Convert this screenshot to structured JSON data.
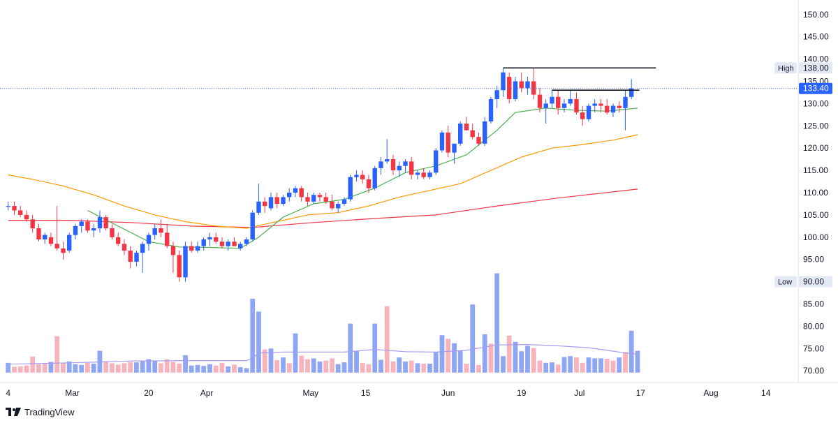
{
  "brand": "TradingView",
  "chart_data": {
    "type": "candlestick",
    "y_axis": {
      "range": [
        68,
        152
      ],
      "ticks": [
        "70.00",
        "75.00",
        "80.00",
        "85.00",
        "90.00",
        "95.00",
        "100.00",
        "105.00",
        "110.00",
        "115.00",
        "120.00",
        "125.00",
        "130.00",
        "135.00",
        "140.00",
        "145.00",
        "150.00"
      ]
    },
    "x_axis": {
      "ticks": [
        {
          "label": "4",
          "bar": 0
        },
        {
          "label": "Mar",
          "bar": 10.5
        },
        {
          "label": "20",
          "bar": 23
        },
        {
          "label": "Apr",
          "bar": 32.5
        },
        {
          "label": "May",
          "bar": 49.5
        },
        {
          "label": "15",
          "bar": 58.5
        },
        {
          "label": "Jun",
          "bar": 72
        },
        {
          "label": "19",
          "bar": 84
        },
        {
          "label": "Jul",
          "bar": 93.5
        },
        {
          "label": "17",
          "bar": 103.5
        },
        {
          "label": "Aug",
          "bar": 115
        },
        {
          "label": "14",
          "bar": 124
        }
      ]
    },
    "markers": {
      "high": {
        "label": "High",
        "value": "138.00",
        "price": 138
      },
      "last": {
        "value": "133.40",
        "price": 133.4
      },
      "low": {
        "label": "Low",
        "value": "90.00",
        "price": 90
      }
    },
    "colors": {
      "up": "#2962ff",
      "down": "#f23645",
      "ma_fast": "#4caf50",
      "ma_mid": "#ff9800",
      "ma_slow": "#f23645",
      "vol_up": "#8fa6f5",
      "vol_down": "#f8b4bd",
      "vol_ma": "#a99bf0",
      "price_line": "#2962ff"
    },
    "candles": [
      [
        107,
        108,
        106,
        107
      ],
      [
        107,
        108,
        105,
        106
      ],
      [
        106,
        107,
        104.5,
        105
      ],
      [
        105,
        106,
        103.5,
        104
      ],
      [
        104,
        105,
        101,
        102
      ],
      [
        102,
        103,
        99,
        99.5
      ],
      [
        99.5,
        101,
        98.5,
        100.5
      ],
      [
        100,
        101,
        98,
        98.5
      ],
      [
        98.5,
        107,
        97,
        97.5
      ],
      [
        97.5,
        99,
        95,
        96.5
      ],
      [
        97,
        101,
        96.5,
        100.5
      ],
      [
        100.5,
        103,
        99.5,
        102.5
      ],
      [
        102.5,
        104,
        101,
        103.5
      ],
      [
        103.5,
        104,
        101,
        101.5
      ],
      [
        101.5,
        103,
        100,
        102
      ],
      [
        102,
        106,
        101,
        104.5
      ],
      [
        104.5,
        105,
        101.5,
        102
      ],
      [
        102,
        103,
        99.5,
        100
      ],
      [
        100,
        101,
        98,
        98.5
      ],
      [
        98.5,
        99.5,
        96,
        97
      ],
      [
        97,
        98,
        93,
        94.5
      ],
      [
        94.5,
        97,
        93.5,
        96.5
      ],
      [
        96.5,
        99,
        92,
        98.5
      ],
      [
        98.5,
        101,
        97,
        100.5
      ],
      [
        100.5,
        103,
        99.5,
        102
      ],
      [
        102,
        104,
        100,
        101
      ],
      [
        101,
        103,
        97.5,
        98
      ],
      [
        98,
        99,
        92,
        96
      ],
      [
        96,
        97,
        90,
        91
      ],
      [
        91,
        99,
        90,
        98
      ],
      [
        98,
        99,
        96.5,
        97
      ],
      [
        97,
        99,
        96.5,
        98
      ],
      [
        98,
        100,
        97,
        99.5
      ],
      [
        99.5,
        101,
        98,
        100
      ],
      [
        100,
        101,
        98.5,
        99
      ],
      [
        99,
        100,
        97.5,
        98
      ],
      [
        98,
        99.5,
        97,
        99
      ],
      [
        99,
        100,
        98,
        98
      ],
      [
        97.5,
        99,
        97,
        98.5
      ],
      [
        98.5,
        100,
        98,
        99.5
      ],
      [
        99.5,
        106,
        99,
        105.5
      ],
      [
        105.5,
        112,
        105,
        108
      ],
      [
        108,
        109,
        105.5,
        107
      ],
      [
        106.5,
        110,
        106,
        109
      ],
      [
        109,
        110,
        106.5,
        107.5
      ],
      [
        107.5,
        109.5,
        107,
        109
      ],
      [
        109,
        111,
        108,
        110
      ],
      [
        110,
        111.5,
        109,
        111
      ],
      [
        111,
        111.5,
        108,
        109
      ],
      [
        109,
        110,
        107,
        108
      ],
      [
        108,
        110,
        107.5,
        109.5
      ],
      [
        109.5,
        110,
        108,
        109
      ],
      [
        109,
        110,
        107.5,
        108
      ],
      [
        108,
        109.5,
        106,
        106.5
      ],
      [
        106.5,
        108,
        105.5,
        107.5
      ],
      [
        107.5,
        109,
        107,
        108.5
      ],
      [
        108.5,
        114,
        108,
        113.5
      ],
      [
        113.5,
        115,
        112.5,
        114
      ],
      [
        114,
        115,
        112,
        113
      ],
      [
        113,
        114,
        110,
        111
      ],
      [
        111,
        116,
        110.5,
        115.5
      ],
      [
        115.5,
        118,
        114,
        117
      ],
      [
        117,
        122,
        116.5,
        117.5
      ],
      [
        117.5,
        118.5,
        114,
        115
      ],
      [
        115,
        117,
        113.5,
        116
      ],
      [
        116,
        117.5,
        114.5,
        117
      ],
      [
        117,
        118,
        113,
        114
      ],
      [
        114,
        115,
        113,
        114.5
      ],
      [
        114.5,
        115.5,
        113,
        113.5
      ],
      [
        113.5,
        115,
        113,
        114.5
      ],
      [
        114.5,
        120,
        114,
        119.5
      ],
      [
        119.5,
        124,
        119,
        123.5
      ],
      [
        123.5,
        125,
        118,
        119
      ],
      [
        119,
        121,
        116.5,
        121
      ],
      [
        121,
        126,
        120.5,
        125.5
      ],
      [
        125.5,
        127,
        124,
        124
      ],
      [
        124,
        125.5,
        122,
        122.5
      ],
      [
        122.5,
        123.5,
        120.5,
        121
      ],
      [
        121,
        127,
        120.5,
        126
      ],
      [
        126,
        131.5,
        125.5,
        131
      ],
      [
        131,
        134,
        129,
        133
      ],
      [
        133,
        138,
        131.5,
        137
      ],
      [
        136,
        137,
        130,
        131
      ],
      [
        131,
        136,
        130.5,
        135
      ],
      [
        135,
        137,
        132.5,
        133.5
      ],
      [
        133.5,
        136,
        132,
        135
      ],
      [
        135,
        138,
        131,
        132
      ],
      [
        132,
        133.5,
        128,
        129
      ],
      [
        129,
        131,
        125.5,
        130
      ],
      [
        130,
        133,
        129,
        131.5
      ],
      [
        131.5,
        133,
        127.5,
        129
      ],
      [
        129,
        131,
        128,
        130
      ],
      [
        130,
        133,
        129.5,
        131
      ],
      [
        131,
        132.5,
        127.5,
        128
      ],
      [
        128,
        129.5,
        125,
        126.5
      ],
      [
        126.5,
        130,
        126,
        129.5
      ],
      [
        129.5,
        131,
        128,
        130
      ],
      [
        130,
        131,
        128,
        129.5
      ],
      [
        129.5,
        131,
        127.5,
        128
      ],
      [
        128,
        130,
        127,
        129.5
      ],
      [
        129.5,
        130.5,
        128,
        129
      ],
      [
        129,
        133,
        124,
        131.5
      ],
      [
        131.5,
        135.5,
        131,
        133.4
      ]
    ],
    "volumes": [
      [
        71.8,
        "u"
      ],
      [
        70.9,
        "d"
      ],
      [
        71,
        "d"
      ],
      [
        71.2,
        "d"
      ],
      [
        73.2,
        "d"
      ],
      [
        71.5,
        "d"
      ],
      [
        71.6,
        "d"
      ],
      [
        72,
        "u"
      ],
      [
        77.8,
        "d"
      ],
      [
        71.7,
        "d"
      ],
      [
        72.1,
        "u"
      ],
      [
        71.5,
        "u"
      ],
      [
        71.3,
        "u"
      ],
      [
        71.8,
        "d"
      ],
      [
        71.6,
        "u"
      ],
      [
        74.5,
        "u"
      ],
      [
        72,
        "d"
      ],
      [
        71.7,
        "d"
      ],
      [
        71.4,
        "d"
      ],
      [
        71.7,
        "d"
      ],
      [
        72,
        "d"
      ],
      [
        71.9,
        "u"
      ],
      [
        72.3,
        "u"
      ],
      [
        72.6,
        "u"
      ],
      [
        72.2,
        "u"
      ],
      [
        71.7,
        "d"
      ],
      [
        72.6,
        "d"
      ],
      [
        72,
        "d"
      ],
      [
        71.6,
        "d"
      ],
      [
        73.5,
        "u"
      ],
      [
        71.2,
        "u"
      ],
      [
        71.3,
        "u"
      ],
      [
        71.1,
        "u"
      ],
      [
        71.5,
        "u"
      ],
      [
        71.2,
        "d"
      ],
      [
        71.8,
        "d"
      ],
      [
        71,
        "u"
      ],
      [
        71.4,
        "d"
      ],
      [
        70.8,
        "u"
      ],
      [
        70.6,
        "u"
      ],
      [
        86.2,
        "u"
      ],
      [
        83.3,
        "u"
      ],
      [
        74.8,
        "d"
      ],
      [
        75,
        "u"
      ],
      [
        72.4,
        "d"
      ],
      [
        73,
        "u"
      ],
      [
        71.7,
        "d"
      ],
      [
        78.4,
        "u"
      ],
      [
        73.4,
        "d"
      ],
      [
        72.6,
        "d"
      ],
      [
        72.8,
        "u"
      ],
      [
        72.1,
        "u"
      ],
      [
        72.3,
        "d"
      ],
      [
        72.8,
        "d"
      ],
      [
        71.5,
        "u"
      ],
      [
        71.9,
        "u"
      ],
      [
        80.6,
        "u"
      ],
      [
        74.5,
        "u"
      ],
      [
        71.8,
        "d"
      ],
      [
        71.5,
        "d"
      ],
      [
        80.6,
        "u"
      ],
      [
        72.5,
        "u"
      ],
      [
        84.5,
        "d"
      ],
      [
        72.1,
        "d"
      ],
      [
        73,
        "u"
      ],
      [
        72.1,
        "u"
      ],
      [
        72.3,
        "d"
      ],
      [
        71.7,
        "u"
      ],
      [
        71.6,
        "d"
      ],
      [
        71.6,
        "u"
      ],
      [
        74.2,
        "u"
      ],
      [
        78,
        "u"
      ],
      [
        77.2,
        "d"
      ],
      [
        76.2,
        "u"
      ],
      [
        74.6,
        "u"
      ],
      [
        71.6,
        "d"
      ],
      [
        84.9,
        "u"
      ],
      [
        71.3,
        "d"
      ],
      [
        78.2,
        "u"
      ],
      [
        76.1,
        "d"
      ],
      [
        91.9,
        "u"
      ],
      [
        73.3,
        "u"
      ],
      [
        77.9,
        "d"
      ],
      [
        76.5,
        "u"
      ],
      [
        74.4,
        "u"
      ],
      [
        75.6,
        "u"
      ],
      [
        75.1,
        "d"
      ],
      [
        72.3,
        "d"
      ],
      [
        71.8,
        "u"
      ],
      [
        71.9,
        "u"
      ],
      [
        71.4,
        "d"
      ],
      [
        73.1,
        "u"
      ],
      [
        73.3,
        "u"
      ],
      [
        73,
        "d"
      ],
      [
        71.8,
        "d"
      ],
      [
        73,
        "u"
      ],
      [
        72.8,
        "u"
      ],
      [
        72.8,
        "u"
      ],
      [
        72.7,
        "d"
      ],
      [
        72.3,
        "d"
      ],
      [
        73,
        "u"
      ],
      [
        74.2,
        "d"
      ],
      [
        79,
        "u"
      ],
      [
        74.5,
        "u"
      ]
    ],
    "ma_fast": [
      [
        13,
        106
      ],
      [
        18,
        102.5
      ],
      [
        23,
        99
      ],
      [
        28,
        97.8
      ],
      [
        33,
        97.7
      ],
      [
        38,
        97.5
      ],
      [
        41,
        100
      ],
      [
        45,
        104.5
      ],
      [
        50,
        107.5
      ],
      [
        55,
        108.5
      ],
      [
        60,
        111
      ],
      [
        65,
        114.5
      ],
      [
        70,
        116
      ],
      [
        75,
        118.5
      ],
      [
        80,
        124
      ],
      [
        83,
        128
      ],
      [
        88,
        129
      ],
      [
        93,
        128.5
      ],
      [
        98,
        128.3
      ],
      [
        103,
        129
      ]
    ],
    "ma_mid": [
      [
        0,
        114
      ],
      [
        4,
        113
      ],
      [
        9,
        111.5
      ],
      [
        14,
        109.5
      ],
      [
        19,
        107
      ],
      [
        24,
        105
      ],
      [
        29,
        103.5
      ],
      [
        34,
        102.5
      ],
      [
        39,
        102
      ],
      [
        44,
        103.5
      ],
      [
        49,
        105
      ],
      [
        54,
        105.5
      ],
      [
        59,
        107
      ],
      [
        64,
        109
      ],
      [
        69,
        110.5
      ],
      [
        74,
        112
      ],
      [
        79,
        115
      ],
      [
        84,
        118
      ],
      [
        89,
        120
      ],
      [
        94,
        120.8
      ],
      [
        99,
        121.8
      ],
      [
        103,
        123
      ]
    ],
    "ma_slow": [
      [
        0,
        103.8
      ],
      [
        10,
        103.8
      ],
      [
        20,
        103.3
      ],
      [
        30,
        102.5
      ],
      [
        40,
        102.2
      ],
      [
        50,
        103.3
      ],
      [
        60,
        104.2
      ],
      [
        70,
        105
      ],
      [
        80,
        107
      ],
      [
        90,
        108.8
      ],
      [
        103,
        110.8
      ]
    ],
    "vol_ma": [
      [
        0,
        71.5
      ],
      [
        10,
        71.8
      ],
      [
        20,
        72.2
      ],
      [
        30,
        72.3
      ],
      [
        39,
        72.3
      ],
      [
        40,
        72.8
      ],
      [
        41,
        74
      ],
      [
        45,
        74.2
      ],
      [
        55,
        74.2
      ],
      [
        60,
        74.8
      ],
      [
        65,
        74.3
      ],
      [
        70,
        74.2
      ],
      [
        75,
        74.6
      ],
      [
        80,
        75.8
      ],
      [
        85,
        75.9
      ],
      [
        90,
        75.6
      ],
      [
        95,
        75.2
      ],
      [
        100,
        74.2
      ],
      [
        103,
        73.7
      ]
    ],
    "lines": [
      {
        "from": [
          81,
          138
        ],
        "to": [
          106,
          138
        ]
      },
      {
        "from": [
          89,
          133
        ],
        "to": [
          103.3,
          133
        ]
      }
    ]
  }
}
